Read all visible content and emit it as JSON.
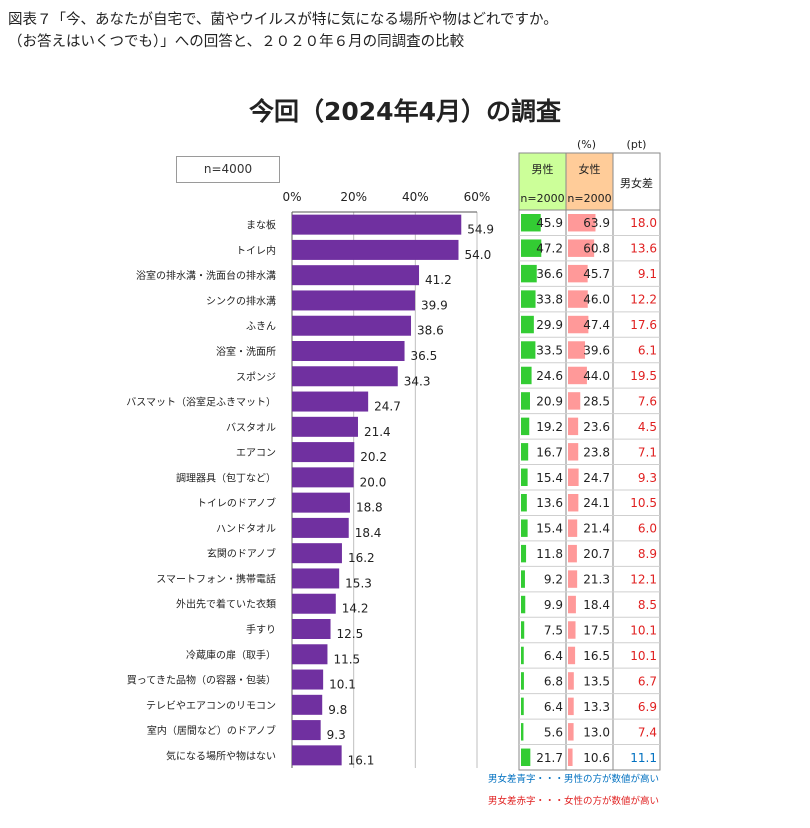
{
  "caption": {
    "line1": "図表７「今、あなたが自宅で、菌やウイルスが特に気になる場所や物はどれですか。",
    "line2": "（お答えはいくつでも）」への回答と、２０２０年６月の同調査の比較"
  },
  "chart_title": "今回（2024年4月）の調査",
  "sample_note": "n=4000",
  "colors": {
    "bar": "#7030A0",
    "male_bar": "#33CC33",
    "female_bar": "#FF9999",
    "male_header_bg": "#CCFF99",
    "female_header_bg": "#FFCC99",
    "diff_red": "#E02020",
    "diff_blue": "#0070C0"
  },
  "chart_data": {
    "type": "bar",
    "orientation": "horizontal",
    "xlim": [
      0,
      60
    ],
    "ticks": [
      "0%",
      "20%",
      "40%",
      "60%"
    ],
    "categories": [
      "まな板",
      "トイレ内",
      "浴室の排水溝・洗面台の排水溝",
      "シンクの排水溝",
      "ふきん",
      "浴室・洗面所",
      "スポンジ",
      "バスマット（浴室足ふきマット）",
      "バスタオル",
      "エアコン",
      "調理器具（包丁など）",
      "トイレのドアノブ",
      "ハンドタオル",
      "玄関のドアノブ",
      "スマートフォン・携帯電話",
      "外出先で着ていた衣類",
      "手すり",
      "冷蔵庫の扉（取手）",
      "買ってきた品物（の容器・包装）",
      "テレビやエアコンのリモコン",
      "室内（居間など）のドアノブ",
      "気になる場所や物はない"
    ],
    "values": [
      54.9,
      54.0,
      41.2,
      39.9,
      38.6,
      36.5,
      34.3,
      24.7,
      21.4,
      20.2,
      20.0,
      18.8,
      18.4,
      16.2,
      15.3,
      14.2,
      12.5,
      11.5,
      10.1,
      9.8,
      9.3,
      16.1
    ]
  },
  "table": {
    "unit_pct": "(%)",
    "unit_pt": "(pt)",
    "male_label": "男性",
    "male_n": "n=2000",
    "female_label": "女性",
    "female_n": "n=2000",
    "diff_label": "男女差",
    "male": [
      45.9,
      47.2,
      36.6,
      33.8,
      29.9,
      33.5,
      24.6,
      20.9,
      19.2,
      16.7,
      15.4,
      13.6,
      15.4,
      11.8,
      9.2,
      9.9,
      7.5,
      6.4,
      6.8,
      6.4,
      5.6,
      21.7
    ],
    "female": [
      63.9,
      60.8,
      45.7,
      46.0,
      47.4,
      39.6,
      44.0,
      28.5,
      23.6,
      23.8,
      24.7,
      24.1,
      21.4,
      20.7,
      21.3,
      18.4,
      17.5,
      16.5,
      13.5,
      13.3,
      13.0,
      10.6
    ],
    "diff": [
      "18.0",
      "13.6",
      "9.1",
      "12.2",
      "17.6",
      "6.1",
      "19.5",
      "7.6",
      "4.5",
      "7.1",
      "9.3",
      "10.5",
      "6.0",
      "8.9",
      "12.1",
      "8.5",
      "10.1",
      "10.1",
      "6.7",
      "6.9",
      "7.4",
      "11.1"
    ],
    "diff_dir": [
      "F",
      "F",
      "F",
      "F",
      "F",
      "F",
      "F",
      "F",
      "F",
      "F",
      "F",
      "F",
      "F",
      "F",
      "F",
      "F",
      "F",
      "F",
      "F",
      "F",
      "F",
      "M"
    ]
  },
  "legend": {
    "blue_note": "男女差青字・・・男性の方が数値が高い",
    "red_note": "男女差赤字・・・女性の方が数値が高い"
  }
}
